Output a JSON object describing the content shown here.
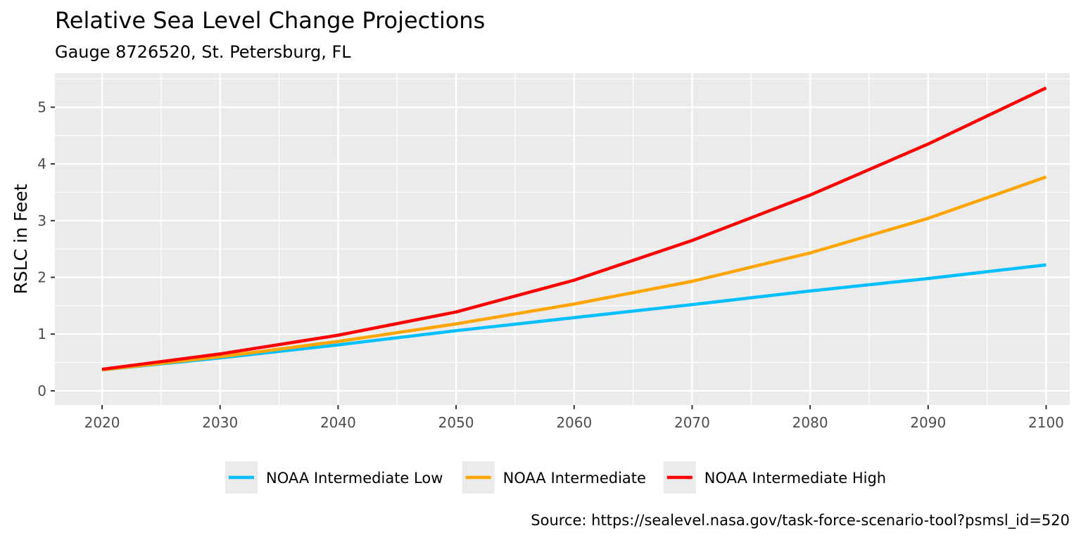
{
  "chart_data": {
    "type": "line",
    "title": "Relative Sea Level Change Projections",
    "subtitle": "Gauge 8726520, St. Petersburg, FL",
    "caption": "Source: https://sealevel.nasa.gov/task-force-scenario-tool?psmsl_id=520",
    "xlabel": "",
    "ylabel": "RSLC in Feet",
    "x": [
      2020,
      2030,
      2040,
      2050,
      2060,
      2070,
      2080,
      2090,
      2100
    ],
    "xlim": [
      2016,
      2102
    ],
    "ylim": [
      -0.25,
      5.6
    ],
    "xticks": [
      2020,
      2030,
      2040,
      2050,
      2060,
      2070,
      2080,
      2090,
      2100
    ],
    "yticks": [
      0,
      1,
      2,
      3,
      4,
      5
    ],
    "grid": true,
    "legend_position": "bottom",
    "series": [
      {
        "name": "NOAA Intermediate Low",
        "color": "#00BFFF",
        "values": [
          0.37,
          0.58,
          0.81,
          1.06,
          1.29,
          1.52,
          1.76,
          1.98,
          2.22
        ]
      },
      {
        "name": "NOAA Intermediate",
        "color": "#FFA500",
        "values": [
          0.37,
          0.6,
          0.87,
          1.18,
          1.53,
          1.93,
          2.43,
          3.04,
          3.77
        ]
      },
      {
        "name": "NOAA Intermediate High",
        "color": "#FF0000",
        "values": [
          0.38,
          0.65,
          0.98,
          1.39,
          1.95,
          2.65,
          3.45,
          4.35,
          5.34
        ]
      }
    ]
  }
}
